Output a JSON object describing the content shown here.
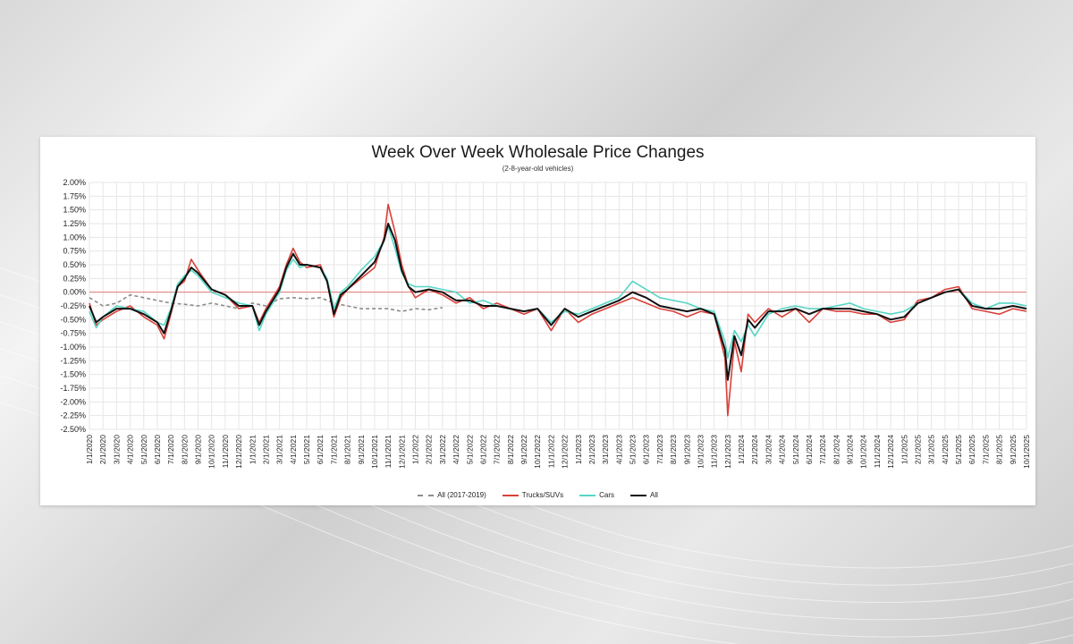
{
  "colors": {
    "all_2017_2019": "#8c8c8c",
    "trucks": "#d9413a",
    "cars": "#56d6c4",
    "all": "#111111",
    "zero_line": "#e07a74",
    "grid": "#e6e6e6"
  },
  "chart_data": {
    "type": "line",
    "title": "Week Over Week Wholesale Price Changes",
    "subtitle": "(2-8-year-old vehicles)",
    "ylim": [
      -2.5,
      2.0
    ],
    "y_ticks": [
      "2.00%",
      "1.75%",
      "1.50%",
      "1.25%",
      "1.00%",
      "0.75%",
      "0.50%",
      "0.25%",
      "0.00%",
      "-0.25%",
      "-0.50%",
      "-0.75%",
      "-1.00%",
      "-1.25%",
      "-1.50%",
      "-1.75%",
      "-2.00%",
      "-2.25%",
      "-2.50%"
    ],
    "x_ticks": [
      "1/1/2020",
      "2/1/2020",
      "3/1/2020",
      "4/1/2020",
      "5/1/2020",
      "6/1/2020",
      "7/1/2020",
      "8/1/2020",
      "9/1/2020",
      "10/1/2020",
      "11/1/2020",
      "12/1/2020",
      "1/1/2021",
      "2/1/2021",
      "3/1/2021",
      "4/1/2021",
      "5/1/2021",
      "6/1/2021",
      "7/1/2021",
      "8/1/2021",
      "9/1/2021",
      "10/1/2021",
      "11/1/2021",
      "12/1/2021",
      "1/1/2022",
      "2/1/2022",
      "3/1/2022",
      "4/1/2022",
      "5/1/2022",
      "6/1/2022",
      "7/1/2022",
      "8/1/2022",
      "9/1/2022",
      "10/1/2022",
      "11/1/2022",
      "12/1/2022",
      "1/1/2023",
      "2/1/2023",
      "3/1/2023",
      "4/1/2023",
      "5/1/2023",
      "6/1/2023",
      "7/1/2023",
      "8/1/2023",
      "9/1/2023",
      "10/1/2023",
      "11/1/2023",
      "12/1/2023",
      "1/1/2024",
      "2/1/2024",
      "3/1/2024",
      "4/1/2024",
      "5/1/2024",
      "6/1/2024",
      "7/1/2024",
      "8/1/2024",
      "9/1/2024",
      "10/1/2024",
      "11/1/2024",
      "12/1/2024",
      "1/1/2025",
      "2/1/2025",
      "3/1/2025",
      "4/1/2025",
      "5/1/2025",
      "6/1/2025",
      "7/1/2025",
      "8/1/2025",
      "9/1/2025",
      "10/1/2025"
    ],
    "grid": true,
    "legend_position": "bottom",
    "series": [
      {
        "name": "All (2017-2019)",
        "style": "dashed",
        "color_key": "all_2017_2019",
        "points": [
          [
            0,
            -0.1
          ],
          [
            1,
            -0.25
          ],
          [
            2,
            -0.2
          ],
          [
            3,
            -0.05
          ],
          [
            4,
            -0.1
          ],
          [
            5,
            -0.15
          ],
          [
            6,
            -0.2
          ],
          [
            7,
            -0.22
          ],
          [
            8,
            -0.25
          ],
          [
            9,
            -0.2
          ],
          [
            10,
            -0.25
          ],
          [
            11,
            -0.3
          ],
          [
            12,
            -0.2
          ],
          [
            13,
            -0.25
          ],
          [
            14,
            -0.12
          ],
          [
            15,
            -0.1
          ],
          [
            16,
            -0.12
          ],
          [
            17,
            -0.1
          ],
          [
            18,
            -0.2
          ],
          [
            19,
            -0.25
          ],
          [
            20,
            -0.3
          ],
          [
            21,
            -0.3
          ],
          [
            22,
            -0.3
          ],
          [
            23,
            -0.35
          ],
          [
            24,
            -0.3
          ],
          [
            25,
            -0.32
          ],
          [
            26,
            -0.28
          ]
        ]
      },
      {
        "name": "Trucks/SUVs",
        "style": "solid",
        "color_key": "trucks",
        "points": [
          [
            0,
            -0.2
          ],
          [
            0.5,
            -0.6
          ],
          [
            1,
            -0.5
          ],
          [
            2,
            -0.35
          ],
          [
            3,
            -0.25
          ],
          [
            4,
            -0.45
          ],
          [
            5,
            -0.6
          ],
          [
            5.5,
            -0.85
          ],
          [
            6,
            -0.4
          ],
          [
            6.5,
            0.1
          ],
          [
            7,
            0.2
          ],
          [
            7.5,
            0.6
          ],
          [
            8,
            0.4
          ],
          [
            9,
            0.05
          ],
          [
            10,
            -0.05
          ],
          [
            11,
            -0.3
          ],
          [
            12,
            -0.25
          ],
          [
            12.5,
            -0.55
          ],
          [
            13,
            -0.3
          ],
          [
            14,
            0.1
          ],
          [
            14.5,
            0.5
          ],
          [
            15,
            0.8
          ],
          [
            15.5,
            0.55
          ],
          [
            16,
            0.45
          ],
          [
            17,
            0.5
          ],
          [
            17.5,
            0.2
          ],
          [
            18,
            -0.45
          ],
          [
            18.5,
            -0.1
          ],
          [
            19,
            0.05
          ],
          [
            20,
            0.25
          ],
          [
            21,
            0.45
          ],
          [
            21.7,
            1.0
          ],
          [
            22,
            1.6
          ],
          [
            22.5,
            1.1
          ],
          [
            23,
            0.5
          ],
          [
            23.5,
            0.1
          ],
          [
            24,
            -0.1
          ],
          [
            25,
            0.05
          ],
          [
            26,
            -0.05
          ],
          [
            27,
            -0.2
          ],
          [
            28,
            -0.1
          ],
          [
            29,
            -0.3
          ],
          [
            30,
            -0.2
          ],
          [
            31,
            -0.3
          ],
          [
            32,
            -0.4
          ],
          [
            33,
            -0.3
          ],
          [
            34,
            -0.7
          ],
          [
            35,
            -0.3
          ],
          [
            36,
            -0.55
          ],
          [
            37,
            -0.4
          ],
          [
            38,
            -0.3
          ],
          [
            39,
            -0.2
          ],
          [
            40,
            -0.1
          ],
          [
            41,
            -0.2
          ],
          [
            42,
            -0.3
          ],
          [
            43,
            -0.35
          ],
          [
            44,
            -0.45
          ],
          [
            45,
            -0.35
          ],
          [
            46,
            -0.4
          ],
          [
            46.8,
            -1.2
          ],
          [
            47,
            -2.25
          ],
          [
            47.5,
            -0.9
          ],
          [
            48,
            -1.45
          ],
          [
            48.5,
            -0.4
          ],
          [
            49,
            -0.55
          ],
          [
            50,
            -0.3
          ],
          [
            51,
            -0.45
          ],
          [
            52,
            -0.3
          ],
          [
            53,
            -0.55
          ],
          [
            54,
            -0.3
          ],
          [
            55,
            -0.35
          ],
          [
            56,
            -0.35
          ],
          [
            57,
            -0.4
          ],
          [
            58,
            -0.4
          ],
          [
            59,
            -0.55
          ],
          [
            60,
            -0.5
          ],
          [
            61,
            -0.15
          ],
          [
            62,
            -0.1
          ],
          [
            63,
            0.05
          ],
          [
            64,
            0.1
          ],
          [
            65,
            -0.3
          ],
          [
            66,
            -0.35
          ],
          [
            67,
            -0.4
          ],
          [
            68,
            -0.3
          ],
          [
            69,
            -0.35
          ]
        ]
      },
      {
        "name": "Cars",
        "style": "solid",
        "color_key": "cars",
        "points": [
          [
            0,
            -0.35
          ],
          [
            0.5,
            -0.65
          ],
          [
            1,
            -0.45
          ],
          [
            2,
            -0.25
          ],
          [
            3,
            -0.3
          ],
          [
            4,
            -0.35
          ],
          [
            5,
            -0.55
          ],
          [
            5.5,
            -0.6
          ],
          [
            6,
            -0.3
          ],
          [
            6.5,
            0.15
          ],
          [
            7,
            0.3
          ],
          [
            7.5,
            0.4
          ],
          [
            8,
            0.3
          ],
          [
            9,
            0.0
          ],
          [
            10,
            -0.1
          ],
          [
            11,
            -0.2
          ],
          [
            12,
            -0.25
          ],
          [
            12.5,
            -0.7
          ],
          [
            13,
            -0.4
          ],
          [
            14,
            0.0
          ],
          [
            14.5,
            0.4
          ],
          [
            15,
            0.6
          ],
          [
            15.5,
            0.45
          ],
          [
            16,
            0.5
          ],
          [
            17,
            0.45
          ],
          [
            17.5,
            0.25
          ],
          [
            18,
            -0.3
          ],
          [
            18.5,
            0.0
          ],
          [
            19,
            0.1
          ],
          [
            20,
            0.4
          ],
          [
            21,
            0.65
          ],
          [
            21.7,
            0.95
          ],
          [
            22,
            1.2
          ],
          [
            22.5,
            0.8
          ],
          [
            23,
            0.35
          ],
          [
            23.5,
            0.15
          ],
          [
            24,
            0.1
          ],
          [
            25,
            0.1
          ],
          [
            26,
            0.05
          ],
          [
            27,
            0.0
          ],
          [
            28,
            -0.2
          ],
          [
            29,
            -0.15
          ],
          [
            30,
            -0.25
          ],
          [
            31,
            -0.3
          ],
          [
            32,
            -0.35
          ],
          [
            33,
            -0.3
          ],
          [
            34,
            -0.55
          ],
          [
            35,
            -0.35
          ],
          [
            36,
            -0.4
          ],
          [
            37,
            -0.3
          ],
          [
            38,
            -0.2
          ],
          [
            39,
            -0.1
          ],
          [
            40,
            0.2
          ],
          [
            41,
            0.05
          ],
          [
            42,
            -0.1
          ],
          [
            43,
            -0.15
          ],
          [
            44,
            -0.2
          ],
          [
            45,
            -0.3
          ],
          [
            46,
            -0.35
          ],
          [
            46.8,
            -0.9
          ],
          [
            47,
            -1.2
          ],
          [
            47.5,
            -0.7
          ],
          [
            48,
            -0.9
          ],
          [
            48.5,
            -0.6
          ],
          [
            49,
            -0.8
          ],
          [
            50,
            -0.4
          ],
          [
            51,
            -0.3
          ],
          [
            52,
            -0.25
          ],
          [
            53,
            -0.3
          ],
          [
            54,
            -0.3
          ],
          [
            55,
            -0.25
          ],
          [
            56,
            -0.2
          ],
          [
            57,
            -0.3
          ],
          [
            58,
            -0.35
          ],
          [
            59,
            -0.4
          ],
          [
            60,
            -0.35
          ],
          [
            61,
            -0.2
          ],
          [
            62,
            -0.1
          ],
          [
            63,
            0.0
          ],
          [
            64,
            0.05
          ],
          [
            65,
            -0.2
          ],
          [
            66,
            -0.3
          ],
          [
            67,
            -0.2
          ],
          [
            68,
            -0.2
          ],
          [
            69,
            -0.25
          ]
        ]
      },
      {
        "name": "All",
        "style": "solid",
        "color_key": "all",
        "points": [
          [
            0,
            -0.25
          ],
          [
            0.5,
            -0.55
          ],
          [
            1,
            -0.45
          ],
          [
            2,
            -0.3
          ],
          [
            3,
            -0.3
          ],
          [
            4,
            -0.4
          ],
          [
            5,
            -0.55
          ],
          [
            5.5,
            -0.75
          ],
          [
            6,
            -0.35
          ],
          [
            6.5,
            0.1
          ],
          [
            7,
            0.25
          ],
          [
            7.5,
            0.45
          ],
          [
            8,
            0.35
          ],
          [
            9,
            0.05
          ],
          [
            10,
            -0.05
          ],
          [
            11,
            -0.25
          ],
          [
            12,
            -0.25
          ],
          [
            12.5,
            -0.6
          ],
          [
            13,
            -0.35
          ],
          [
            14,
            0.05
          ],
          [
            14.5,
            0.45
          ],
          [
            15,
            0.7
          ],
          [
            15.5,
            0.5
          ],
          [
            16,
            0.5
          ],
          [
            17,
            0.45
          ],
          [
            17.5,
            0.2
          ],
          [
            18,
            -0.4
          ],
          [
            18.5,
            -0.05
          ],
          [
            19,
            0.05
          ],
          [
            20,
            0.3
          ],
          [
            21,
            0.55
          ],
          [
            21.7,
            0.95
          ],
          [
            22,
            1.25
          ],
          [
            22.5,
            0.95
          ],
          [
            23,
            0.4
          ],
          [
            23.5,
            0.1
          ],
          [
            24,
            0.0
          ],
          [
            25,
            0.05
          ],
          [
            26,
            0.0
          ],
          [
            27,
            -0.15
          ],
          [
            28,
            -0.15
          ],
          [
            29,
            -0.25
          ],
          [
            30,
            -0.25
          ],
          [
            31,
            -0.3
          ],
          [
            32,
            -0.35
          ],
          [
            33,
            -0.3
          ],
          [
            34,
            -0.6
          ],
          [
            35,
            -0.3
          ],
          [
            36,
            -0.45
          ],
          [
            37,
            -0.35
          ],
          [
            38,
            -0.25
          ],
          [
            39,
            -0.15
          ],
          [
            40,
            0.0
          ],
          [
            41,
            -0.1
          ],
          [
            42,
            -0.25
          ],
          [
            43,
            -0.3
          ],
          [
            44,
            -0.35
          ],
          [
            45,
            -0.3
          ],
          [
            46,
            -0.4
          ],
          [
            46.8,
            -1.05
          ],
          [
            47,
            -1.6
          ],
          [
            47.5,
            -0.8
          ],
          [
            48,
            -1.15
          ],
          [
            48.5,
            -0.5
          ],
          [
            49,
            -0.65
          ],
          [
            50,
            -0.35
          ],
          [
            51,
            -0.35
          ],
          [
            52,
            -0.3
          ],
          [
            53,
            -0.4
          ],
          [
            54,
            -0.3
          ],
          [
            55,
            -0.3
          ],
          [
            56,
            -0.3
          ],
          [
            57,
            -0.35
          ],
          [
            58,
            -0.4
          ],
          [
            59,
            -0.5
          ],
          [
            60,
            -0.45
          ],
          [
            61,
            -0.2
          ],
          [
            62,
            -0.1
          ],
          [
            63,
            0.0
          ],
          [
            64,
            0.05
          ],
          [
            65,
            -0.25
          ],
          [
            66,
            -0.3
          ],
          [
            67,
            -0.3
          ],
          [
            68,
            -0.25
          ],
          [
            69,
            -0.3
          ]
        ]
      }
    ]
  }
}
